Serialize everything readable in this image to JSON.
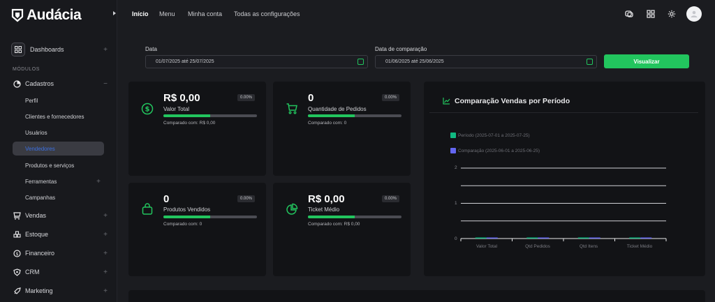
{
  "brand": {
    "name": "Audácia"
  },
  "sidebar": {
    "dashboards": "Dashboards",
    "section_title": "MÓDULOS",
    "cadastros": "Cadastros",
    "cadastros_sub": [
      "Perfil",
      "Clientes e fornecedores",
      "Usuários",
      "Vendedores",
      "Produtos e serviços",
      "Ferramentas",
      "Campanhas"
    ],
    "modules": [
      "Vendas",
      "Estoque",
      "Financeiro",
      "CRM",
      "Marketing"
    ]
  },
  "topnav": {
    "items": [
      "Início",
      "Menu",
      "Minha conta",
      "Todas as configurações"
    ],
    "active": "Início"
  },
  "filters": {
    "date_label": "Data",
    "date_value": "01/07/2025 até 25/07/2025",
    "compare_label": "Data de comparação",
    "compare_value": "01/06/2025 até 25/06/2025",
    "submit": "Visualizar"
  },
  "stats": [
    {
      "value": "R$ 0,00",
      "label": "Valor Total",
      "pct": "0.00%",
      "progress": 0.5,
      "compare": "Comparado com: R$ 0,00",
      "icon": "dollar-icon"
    },
    {
      "value": "0",
      "label": "Quantidade de Pedidos",
      "pct": "0.00%",
      "progress": 0.5,
      "compare": "Comparado com: 0",
      "icon": "cart-icon"
    },
    {
      "value": "0",
      "label": "Produtos Vendidos",
      "pct": "0.00%",
      "progress": 0.5,
      "compare": "Comparado com: 0",
      "icon": "bag-icon"
    },
    {
      "value": "R$ 0,00",
      "label": "Ticket Médio",
      "pct": "0.00%",
      "progress": 0.5,
      "compare": "Comparado com: R$ 0,00",
      "icon": "pie-icon"
    }
  ],
  "colors": {
    "accent": "#22c55e",
    "period": "#10b981",
    "comparison": "#6366f1",
    "active_link": "#3b6fe0"
  },
  "chart_data": {
    "type": "bar",
    "title": "Comparação Vendas por Período",
    "categories": [
      "Valor Total",
      "Qtd Pedidos",
      "Qtd Itens",
      "Ticket Médio"
    ],
    "series": [
      {
        "name": "Período (2025-07-01 a 2025-07-25)",
        "values": [
          0,
          0,
          0,
          0
        ],
        "color": "#10b981"
      },
      {
        "name": "Comparação (2025-06-01 a 2025-06-25)",
        "values": [
          0,
          0,
          0,
          0
        ],
        "color": "#6366f1"
      }
    ],
    "yticks": [
      "0",
      "1",
      "2"
    ],
    "ylim": [
      0,
      2
    ],
    "grid": true,
    "legend": "top-left"
  }
}
